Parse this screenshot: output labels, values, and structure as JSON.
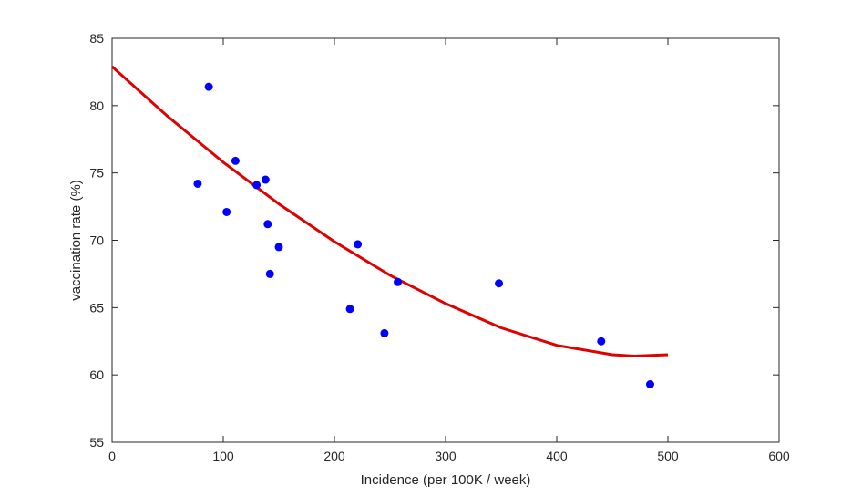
{
  "chart_data": {
    "type": "scatter",
    "title": "",
    "xlabel": "Incidence (per 100K / week)",
    "ylabel": "vaccination rate (%)",
    "xlim": [
      0,
      600
    ],
    "ylim": [
      55,
      85
    ],
    "xticks": [
      0,
      100,
      200,
      300,
      400,
      500,
      600
    ],
    "yticks": [
      55,
      60,
      65,
      70,
      75,
      80,
      85
    ],
    "grid": false,
    "series": [
      {
        "kind": "points",
        "color": "#0000ff",
        "points": [
          [
            77,
            74.2
          ],
          [
            87,
            81.4
          ],
          [
            103,
            72.1
          ],
          [
            111,
            75.9
          ],
          [
            130,
            74.1
          ],
          [
            138,
            74.5
          ],
          [
            140,
            71.2
          ],
          [
            142,
            67.5
          ],
          [
            150,
            69.5
          ],
          [
            214,
            64.9
          ],
          [
            221,
            69.7
          ],
          [
            245,
            63.1
          ],
          [
            257,
            66.9
          ],
          [
            348,
            66.8
          ],
          [
            440,
            62.5
          ],
          [
            484,
            59.3
          ]
        ]
      },
      {
        "kind": "fit-curve",
        "color": "#e00000",
        "x": [
          0,
          50,
          100,
          150,
          200,
          250,
          300,
          350,
          400,
          450,
          470,
          500
        ],
        "y": [
          82.9,
          79.2,
          75.8,
          72.7,
          69.9,
          67.4,
          65.3,
          63.5,
          62.2,
          61.5,
          61.4,
          61.5
        ]
      }
    ]
  }
}
